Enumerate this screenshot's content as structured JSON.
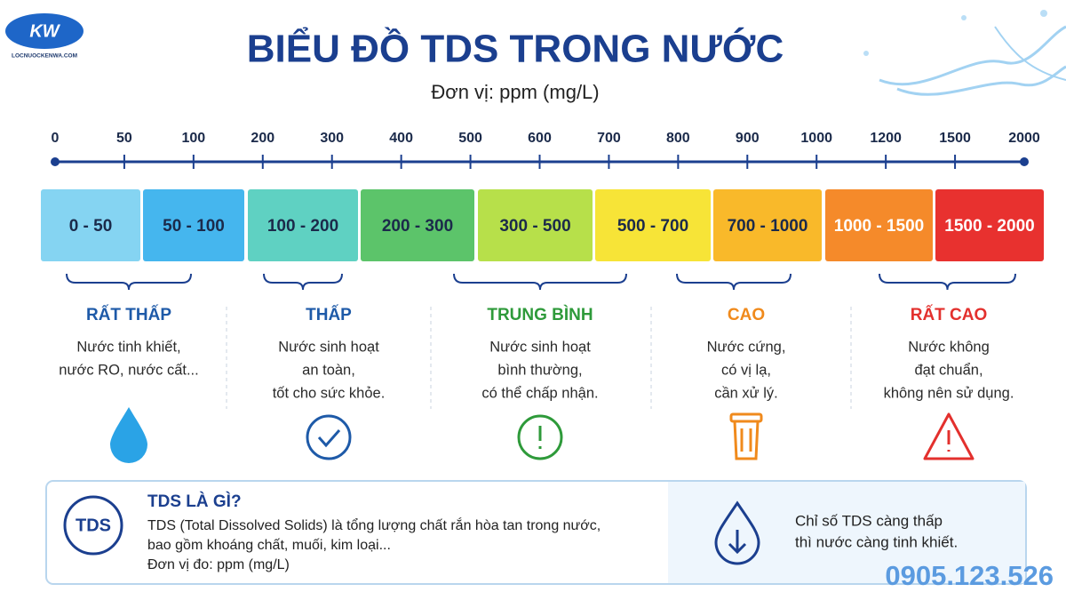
{
  "logo": {
    "mark": "KW",
    "caption": "LOCNUOCKENWA.COM"
  },
  "header": {
    "title": "BIỂU ĐỒ TDS TRONG NƯỚC",
    "subtitle": "Đơn vị: ppm (mg/L)"
  },
  "scale": {
    "ticks": [
      0,
      50,
      100,
      200,
      300,
      400,
      500,
      600,
      700,
      800,
      900,
      1000,
      1200,
      1500,
      2000
    ]
  },
  "bands": [
    {
      "label": "0 - 50",
      "color": "#85d4f2",
      "text_color": "#1b2a4a"
    },
    {
      "label": "50 - 100",
      "color": "#45b6ee",
      "text_color": "#1b2a4a"
    },
    {
      "label": "100 - 200",
      "color": "#5fd1c2",
      "text_color": "#1b2a4a"
    },
    {
      "label": "200 - 300",
      "color": "#5cc46a",
      "text_color": "#1b2a4a"
    },
    {
      "label": "300 - 500",
      "color": "#b7e04a",
      "text_color": "#1b2a4a"
    },
    {
      "label": "500 - 700",
      "color": "#f7e437",
      "text_color": "#1b2a4a"
    },
    {
      "label": "700 - 1000",
      "color": "#f9b92a",
      "text_color": "#1b2a4a"
    },
    {
      "label": "1000 - 1500",
      "color": "#f58a2a",
      "text_color": "#ffffff"
    },
    {
      "label": "1500 - 2000",
      "color": "#e8312f",
      "text_color": "#ffffff"
    }
  ],
  "levels": [
    {
      "title": "RẤT THẤP",
      "color": "#1e5aa8",
      "lines": [
        "Nước tinh khiết,",
        "nước RO, nước cất..."
      ]
    },
    {
      "title": "THẤP",
      "color": "#1e5aa8",
      "lines": [
        "Nước sinh hoạt",
        "an toàn,",
        "tốt cho sức khỏe."
      ]
    },
    {
      "title": "TRUNG BÌNH",
      "color": "#2e9a3a",
      "lines": [
        "Nước sinh hoạt",
        "bình thường,",
        "có thể chấp nhận."
      ]
    },
    {
      "title": "CAO",
      "color": "#f08a1c",
      "lines": [
        "Nước cứng,",
        "có vị lạ,",
        "cần xử lý."
      ]
    },
    {
      "title": "RẤT CAO",
      "color": "#e3302d",
      "lines": [
        "Nước không",
        "đạt chuẩn,",
        "không nên sử dụng."
      ]
    }
  ],
  "info": {
    "badge": "TDS",
    "title": "TDS LÀ GÌ?",
    "lines": [
      "TDS (Total Dissolved Solids) là tổng lượng chất rắn hòa tan trong nước,",
      "bao gồm khoáng chất, muối, kim loại...",
      "Đơn vị đo: ppm (mg/L)"
    ]
  },
  "note": {
    "lines": [
      "Chỉ số TDS càng thấp",
      "thì nước càng tinh khiết."
    ]
  },
  "phone": "0905.123.526"
}
